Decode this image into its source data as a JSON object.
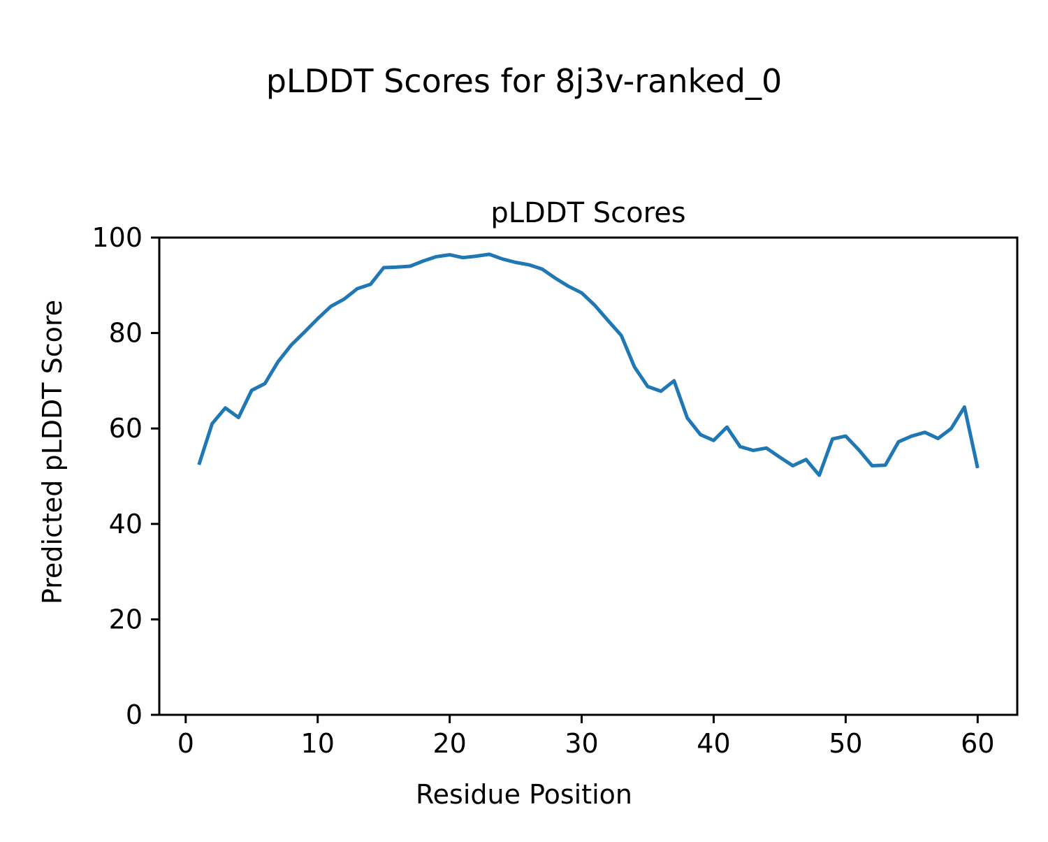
{
  "figure": {
    "suptitle": "pLDDT Scores for 8j3v-ranked_0",
    "background_color": "#ffffff",
    "text_color": "#000000",
    "spine_color": "#000000"
  },
  "chart_data": {
    "type": "line",
    "title": "pLDDT Scores",
    "xlabel": "Residue Position",
    "ylabel": "Predicted pLDDT Score",
    "grid": false,
    "legend_position": "none",
    "xlim": [
      -2,
      63
    ],
    "ylim": [
      0,
      100
    ],
    "xticks": [
      0,
      10,
      20,
      30,
      40,
      50,
      60
    ],
    "yticks": [
      0,
      20,
      40,
      60,
      80,
      100
    ],
    "x": [
      1,
      2,
      3,
      4,
      5,
      6,
      7,
      8,
      9,
      10,
      11,
      12,
      13,
      14,
      15,
      16,
      17,
      18,
      19,
      20,
      21,
      22,
      23,
      24,
      25,
      26,
      27,
      28,
      29,
      30,
      31,
      32,
      33,
      34,
      35,
      36,
      37,
      38,
      39,
      40,
      41,
      42,
      43,
      44,
      45,
      46,
      47,
      48,
      49,
      50,
      51,
      52,
      53,
      54,
      55,
      56,
      57,
      58,
      59,
      60
    ],
    "series": [
      {
        "name": "pLDDT",
        "color": "#1f77b4",
        "line_width": 5,
        "values": [
          52.4,
          61.0,
          64.3,
          62.3,
          68.0,
          69.4,
          74.0,
          77.5,
          80.2,
          83.0,
          85.6,
          87.1,
          89.3,
          90.2,
          93.7,
          93.8,
          94.0,
          95.1,
          96.0,
          96.4,
          95.8,
          96.1,
          96.5,
          95.5,
          94.8,
          94.3,
          93.4,
          91.5,
          89.8,
          88.4,
          85.8,
          82.6,
          79.5,
          72.9,
          68.8,
          67.8,
          70.0,
          62.2,
          58.7,
          57.5,
          60.3,
          56.2,
          55.4,
          55.9,
          54.0,
          52.2,
          53.5,
          50.2,
          57.8,
          58.4,
          55.5,
          52.2,
          52.3,
          57.2,
          58.4,
          59.2,
          57.9,
          60.0,
          64.5,
          51.7
        ]
      }
    ]
  }
}
